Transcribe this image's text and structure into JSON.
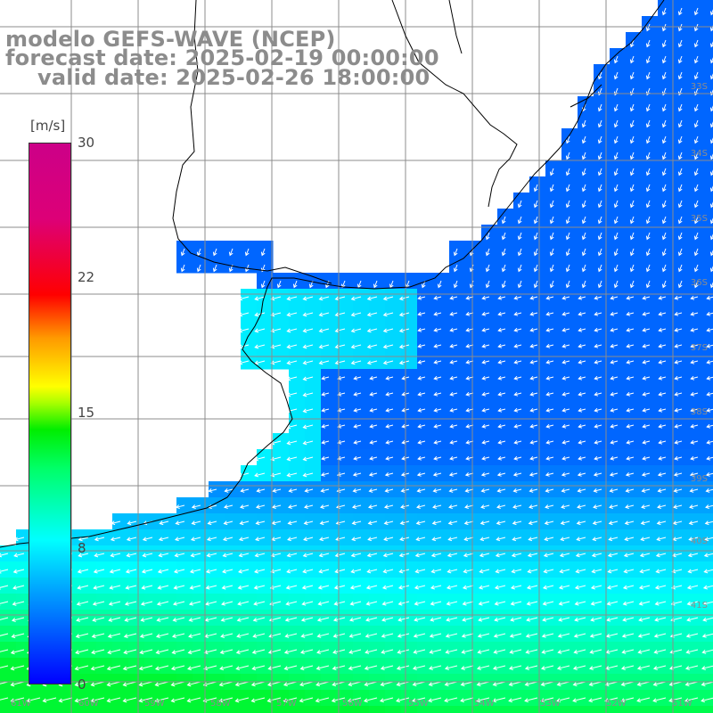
{
  "title": {
    "line1": "modelo GEFS-WAVE (NCEP)",
    "line2": "forecast date: 2025-02-19 00:00:00",
    "line3": "valid date: 2025-02-26 18:00:00"
  },
  "colorbar": {
    "unit": "[m/s]",
    "ticks": [
      {
        "label": "30",
        "value": 30
      },
      {
        "label": "22",
        "value": 22
      },
      {
        "label": "15",
        "value": 15
      },
      {
        "label": "8",
        "value": 8
      },
      {
        "label": "0",
        "value": 0
      }
    ],
    "stops": [
      {
        "value": 0,
        "color": "#0000ff"
      },
      {
        "value": 5,
        "color": "#00aaff"
      },
      {
        "value": 8,
        "color": "#00ffff"
      },
      {
        "value": 12,
        "color": "#00ff66"
      },
      {
        "value": 14,
        "color": "#00ee00"
      },
      {
        "value": 15.5,
        "color": "#aaff00"
      },
      {
        "value": 16.5,
        "color": "#ffff00"
      },
      {
        "value": 19,
        "color": "#ff9900"
      },
      {
        "value": 22,
        "color": "#ff0000"
      },
      {
        "value": 30,
        "color": "#cc0088"
      }
    ]
  },
  "latitude_labels": [
    "33S",
    "34S",
    "35S",
    "36S",
    "37S",
    "38S",
    "39S",
    "40S",
    "41S"
  ],
  "longitude_labels": [
    "61W",
    "60W",
    "59W",
    "58W",
    "57W",
    "56W",
    "55W",
    "54W",
    "53W",
    "52W",
    "51W"
  ],
  "colors": {
    "land": "#ffffff",
    "coastline": "#000000",
    "grid": "#8c8c8c",
    "arrows": "#ffffff",
    "title": "#8c8c8c"
  }
}
